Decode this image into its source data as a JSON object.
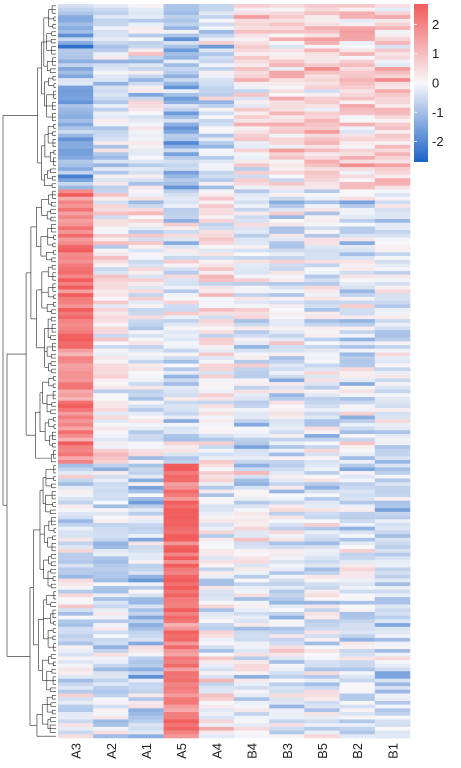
{
  "chart_data": {
    "type": "heatmap",
    "columns": [
      "A3",
      "A2",
      "A1",
      "A5",
      "A4",
      "B4",
      "B3",
      "B5",
      "B2",
      "B1"
    ],
    "n_rows": 198,
    "row_clusters": [
      {
        "rows": 50,
        "means": [
          -1.2,
          -0.5,
          -0.3,
          -1.0,
          -0.4,
          0.4,
          0.4,
          0.7,
          0.6,
          0.7
        ]
      },
      {
        "rows": 74,
        "means": [
          2.0,
          0.3,
          -0.1,
          -0.3,
          0.1,
          -0.2,
          -0.2,
          -0.3,
          -0.4,
          -0.3
        ]
      },
      {
        "rows": 74,
        "means": [
          -0.3,
          -0.4,
          -0.6,
          2.2,
          0.0,
          -0.2,
          -0.2,
          -0.3,
          -0.3,
          -0.5
        ]
      }
    ],
    "legend": {
      "position": "top-right",
      "ticks": [
        2,
        1,
        0,
        -1,
        -2
      ],
      "range": [
        -2.7,
        2.7
      ],
      "colors": {
        "low": "#1a62c6",
        "mid": "#f7f7fa",
        "high": "#f25c5c"
      }
    },
    "dendrogram": "rows"
  }
}
